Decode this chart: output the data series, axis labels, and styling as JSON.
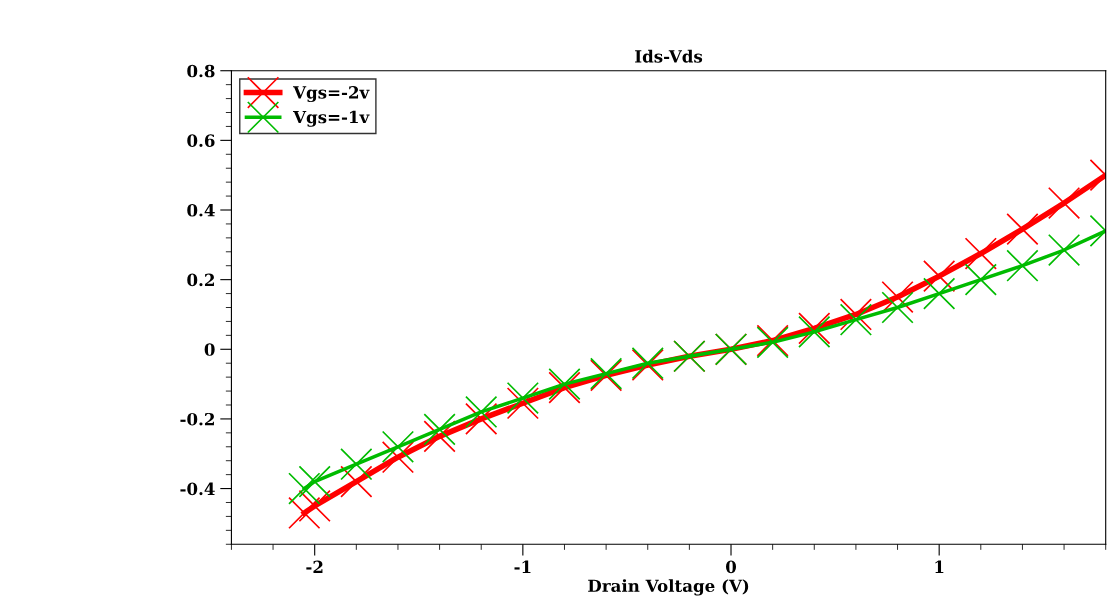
{
  "chart_data": {
    "type": "line",
    "title": "Ids-Vds",
    "xlabel": "Drain Voltage (V)",
    "x": [
      -2.05,
      -2,
      -1.8,
      -1.6,
      -1.4,
      -1.2,
      -1,
      -0.8,
      -0.6,
      -0.4,
      -0.2,
      0,
      0.2,
      0.4,
      0.6,
      0.8,
      1,
      1.2,
      1.4,
      1.6,
      1.8
    ],
    "series": [
      {
        "name": "Vgs=-2v",
        "color": "#ff0000",
        "values": [
          -0.47,
          -0.45,
          -0.38,
          -0.31,
          -0.25,
          -0.2,
          -0.155,
          -0.11,
          -0.075,
          -0.045,
          -0.02,
          0,
          0.025,
          0.06,
          0.1,
          0.15,
          0.21,
          0.275,
          0.345,
          0.42,
          0.5
        ]
      },
      {
        "name": "Vgs=-1v",
        "color": "#00bb00",
        "values": [
          -0.4,
          -0.38,
          -0.33,
          -0.28,
          -0.23,
          -0.18,
          -0.14,
          -0.1,
          -0.07,
          -0.04,
          -0.02,
          0,
          0.02,
          0.05,
          0.085,
          0.12,
          0.16,
          0.2,
          0.24,
          0.285,
          0.34
        ]
      }
    ],
    "xlim": [
      -2.4,
      1.8
    ],
    "ylim": [
      -0.56,
      0.8
    ],
    "xticks": [
      -2,
      -1,
      0,
      1
    ],
    "yticks": [
      -0.4,
      -0.2,
      0,
      0.2,
      0.4,
      0.6,
      0.8
    ],
    "marker": "cross",
    "line_style": "solid",
    "legend": "top left",
    "grid": false
  }
}
